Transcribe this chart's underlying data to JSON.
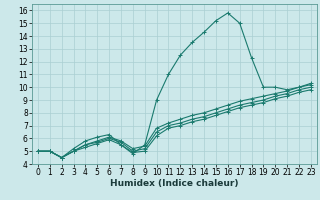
{
  "bg_color": "#cce8ea",
  "grid_color": "#aacfd2",
  "line_color": "#1a7a6e",
  "xlabel": "Humidex (Indice chaleur)",
  "xlim": [
    -0.5,
    23.5
  ],
  "ylim": [
    4,
    16.5
  ],
  "xticks": [
    0,
    1,
    2,
    3,
    4,
    5,
    6,
    7,
    8,
    9,
    10,
    11,
    12,
    13,
    14,
    15,
    16,
    17,
    18,
    19,
    20,
    21,
    22,
    23
  ],
  "yticks": [
    4,
    5,
    6,
    7,
    8,
    9,
    10,
    11,
    12,
    13,
    14,
    15,
    16
  ],
  "series": [
    {
      "x": [
        0,
        1,
        2,
        3,
        4,
        5,
        6,
        7,
        8,
        9,
        10,
        11,
        12,
        13,
        14,
        15,
        16,
        17,
        18,
        19,
        20,
        21,
        22,
        23
      ],
      "y": [
        5.0,
        5.0,
        4.5,
        5.2,
        5.8,
        6.1,
        6.3,
        5.5,
        4.8,
        5.5,
        9.0,
        11.0,
        12.5,
        13.5,
        14.3,
        15.2,
        15.8,
        15.0,
        12.3,
        10.0,
        10.0,
        9.8,
        10.0,
        10.3
      ]
    },
    {
      "x": [
        0,
        1,
        2,
        3,
        4,
        5,
        6,
        7,
        8,
        9,
        10,
        11,
        12,
        13,
        14,
        15,
        16,
        17,
        18,
        19,
        20,
        21,
        22,
        23
      ],
      "y": [
        5.0,
        5.0,
        4.5,
        5.0,
        5.5,
        5.8,
        6.1,
        5.8,
        5.2,
        5.4,
        6.8,
        7.2,
        7.5,
        7.8,
        8.0,
        8.3,
        8.6,
        8.9,
        9.1,
        9.3,
        9.5,
        9.7,
        10.0,
        10.2
      ]
    },
    {
      "x": [
        0,
        1,
        2,
        3,
        4,
        5,
        6,
        7,
        8,
        9,
        10,
        11,
        12,
        13,
        14,
        15,
        16,
        17,
        18,
        19,
        20,
        21,
        22,
        23
      ],
      "y": [
        5.0,
        5.0,
        4.5,
        5.0,
        5.5,
        5.7,
        6.0,
        5.7,
        5.0,
        5.2,
        6.5,
        7.0,
        7.2,
        7.5,
        7.7,
        8.0,
        8.3,
        8.6,
        8.8,
        9.0,
        9.3,
        9.5,
        9.8,
        10.0
      ]
    },
    {
      "x": [
        0,
        1,
        2,
        3,
        4,
        5,
        6,
        7,
        8,
        9,
        10,
        11,
        12,
        13,
        14,
        15,
        16,
        17,
        18,
        19,
        20,
        21,
        22,
        23
      ],
      "y": [
        5.0,
        5.0,
        4.5,
        5.0,
        5.3,
        5.6,
        5.9,
        5.5,
        4.9,
        5.0,
        6.2,
        6.8,
        7.0,
        7.3,
        7.5,
        7.8,
        8.1,
        8.4,
        8.6,
        8.8,
        9.1,
        9.3,
        9.6,
        9.8
      ]
    }
  ],
  "marker": "+",
  "markersize": 3,
  "linewidth": 0.8,
  "tick_fontsize": 5.5,
  "xlabel_fontsize": 6.5
}
